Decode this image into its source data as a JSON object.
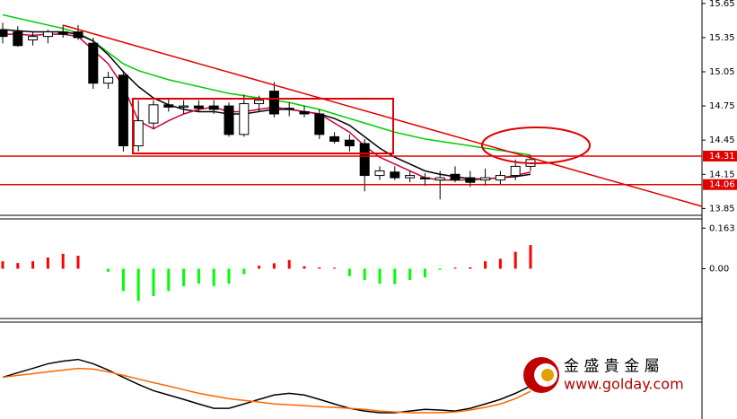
{
  "chart_data": {
    "type": "candlestick",
    "ylim": [
      13.79,
      15.68
    ],
    "yticks": [
      15.65,
      15.35,
      15.05,
      14.75,
      14.45,
      14.15,
      13.85
    ],
    "open": [
      15.42,
      15.4,
      15.33,
      15.36,
      15.4,
      15.4,
      15.3,
      14.95,
      15.02,
      14.4,
      14.6,
      14.76,
      14.74,
      14.75,
      14.75,
      14.75,
      14.5,
      14.77,
      14.88,
      14.73,
      14.7,
      14.68,
      14.48,
      14.45,
      14.42,
      14.14,
      14.17,
      14.12,
      14.12,
      14.1,
      14.15,
      14.12,
      14.1,
      14.1,
      14.14,
      14.22
    ],
    "high": [
      15.48,
      15.45,
      15.4,
      15.42,
      15.46,
      15.46,
      15.35,
      15.05,
      15.06,
      14.8,
      14.8,
      14.82,
      14.8,
      14.8,
      14.8,
      14.78,
      14.85,
      14.84,
      14.96,
      14.78,
      14.75,
      14.72,
      14.52,
      14.5,
      14.46,
      14.22,
      14.22,
      14.18,
      14.16,
      14.18,
      14.22,
      14.18,
      14.2,
      14.18,
      14.28,
      14.32
    ],
    "low": [
      15.3,
      15.27,
      15.28,
      15.3,
      15.35,
      15.33,
      14.9,
      14.9,
      14.35,
      14.35,
      14.55,
      14.7,
      14.68,
      14.7,
      14.68,
      14.48,
      14.48,
      14.7,
      14.65,
      14.66,
      14.65,
      14.46,
      14.42,
      14.35,
      14.0,
      14.1,
      14.1,
      14.08,
      14.05,
      13.93,
      14.08,
      14.04,
      14.05,
      14.06,
      14.1,
      14.18
    ],
    "close": [
      15.36,
      15.28,
      15.36,
      15.4,
      15.38,
      15.35,
      14.95,
      15.0,
      14.4,
      14.62,
      14.76,
      14.74,
      14.75,
      14.73,
      14.72,
      14.5,
      14.77,
      14.8,
      14.68,
      14.72,
      14.68,
      14.5,
      14.44,
      14.4,
      14.14,
      14.18,
      14.12,
      14.14,
      14.11,
      14.12,
      14.1,
      14.08,
      14.12,
      14.14,
      14.22,
      14.28
    ],
    "bull_color": "#ffffff",
    "bear_color": "#000000",
    "moving_averages": [
      {
        "color": "#00cc00",
        "values": [
          15.55,
          15.52,
          15.49,
          15.46,
          15.43,
          15.39,
          15.32,
          15.22,
          15.12,
          15.06,
          15.02,
          14.98,
          14.95,
          14.92,
          14.89,
          14.86,
          14.84,
          14.82,
          14.8,
          14.78,
          14.75,
          14.72,
          14.68,
          14.64,
          14.6,
          14.56,
          14.52,
          14.49,
          14.46,
          14.44,
          14.42,
          14.4,
          14.38,
          14.36,
          14.34,
          14.32
        ]
      },
      {
        "color": "#000000",
        "values": [
          15.42,
          15.41,
          15.4,
          15.4,
          15.4,
          15.38,
          15.32,
          15.2,
          15.05,
          14.92,
          14.82,
          14.76,
          14.72,
          14.7,
          14.7,
          14.68,
          14.68,
          14.7,
          14.72,
          14.72,
          14.7,
          14.68,
          14.64,
          14.58,
          14.48,
          14.38,
          14.3,
          14.24,
          14.18,
          14.15,
          14.13,
          14.11,
          14.11,
          14.12,
          14.13,
          14.15
        ]
      },
      {
        "color": "#cc0033",
        "values": [
          15.38,
          15.38,
          15.37,
          15.38,
          15.38,
          15.36,
          15.24,
          15.12,
          14.92,
          14.62,
          14.55,
          14.62,
          14.68,
          14.72,
          14.74,
          14.7,
          14.7,
          14.72,
          14.74,
          14.72,
          14.7,
          14.68,
          14.6,
          14.52,
          14.4,
          14.3,
          14.24,
          14.18,
          14.12,
          14.1,
          14.1,
          14.1,
          14.11,
          14.12,
          14.14,
          14.17
        ]
      }
    ],
    "levels": [
      14.31,
      14.06
    ],
    "level_color": "#e00000",
    "histogram": {
      "ylim": [
        -0.2,
        0.2
      ],
      "yticks": [
        0.163,
        {
          "value": 0,
          "label": "0.00"
        }
      ],
      "positive_color": "#ff0000",
      "negative_color": "#00ff00",
      "values": [
        0.03,
        0.023,
        0.03,
        0.045,
        0.06,
        0.052,
        0,
        -0.012,
        -0.09,
        -0.13,
        -0.11,
        -0.09,
        -0.07,
        -0.06,
        -0.07,
        -0.06,
        -0.022,
        0.012,
        0.022,
        0.035,
        0.01,
        0.005,
        0.004,
        -0.03,
        -0.045,
        -0.06,
        -0.062,
        -0.045,
        -0.035,
        -0.005,
        0.004,
        0.006,
        0.03,
        0.04,
        0.068,
        0.095
      ]
    },
    "oscillator": {
      "ylim": [
        -0.3,
        0.1
      ],
      "series": [
        {
          "color": "#000000",
          "values": [
            -0.128,
            -0.109,
            -0.091,
            -0.072,
            -0.061,
            -0.054,
            -0.072,
            -0.098,
            -0.128,
            -0.157,
            -0.183,
            -0.201,
            -0.219,
            -0.238,
            -0.256,
            -0.256,
            -0.238,
            -0.219,
            -0.201,
            -0.194,
            -0.201,
            -0.219,
            -0.238,
            -0.256,
            -0.267,
            -0.274,
            -0.274,
            -0.267,
            -0.26,
            -0.263,
            -0.267,
            -0.256,
            -0.238,
            -0.219,
            -0.194,
            -0.164
          ]
        },
        {
          "color": "#ff6600",
          "values": [
            -0.128,
            -0.12,
            -0.113,
            -0.105,
            -0.098,
            -0.091,
            -0.094,
            -0.105,
            -0.12,
            -0.135,
            -0.15,
            -0.164,
            -0.179,
            -0.194,
            -0.205,
            -0.216,
            -0.223,
            -0.23,
            -0.238,
            -0.241,
            -0.245,
            -0.249,
            -0.252,
            -0.256,
            -0.26,
            -0.267,
            -0.271,
            -0.274,
            -0.274,
            -0.274,
            -0.271,
            -0.263,
            -0.252,
            -0.238,
            -0.216,
            -0.186
          ]
        }
      ]
    },
    "watermark": {
      "name": "金 盛 貴 金 屬",
      "url": "www.golday.com"
    }
  }
}
